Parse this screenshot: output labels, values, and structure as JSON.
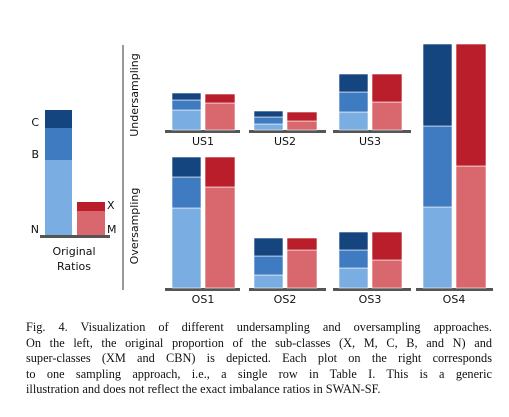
{
  "figure": {
    "colors": {
      "blue": [
        "#7aaee2",
        "#3f7bc0",
        "#15457f"
      ],
      "red": [
        "#d9686e",
        "#bb1e2b"
      ]
    },
    "original": {
      "blue": [
        {
          "name": "N",
          "value": 75
        },
        {
          "name": "B",
          "value": 32
        },
        {
          "name": "C",
          "value": 18
        }
      ],
      "red": [
        {
          "name": "M",
          "value": 24
        },
        {
          "name": "X",
          "value": 9
        }
      ],
      "label_lines": [
        "Original",
        "Ratios"
      ]
    },
    "row_labels": [
      "Undersampling",
      "Oversampling"
    ],
    "panels": [
      {
        "label": "US1",
        "blue": [
          20,
          10,
          7
        ],
        "red": [
          27,
          9
        ]
      },
      {
        "label": "US2",
        "blue": [
          6,
          7,
          6
        ],
        "red": [
          9,
          9
        ]
      },
      {
        "label": "US3",
        "blue": [
          18,
          20,
          18
        ],
        "red": [
          28,
          28
        ]
      },
      {
        "label": "OS1",
        "blue": [
          80,
          31,
          20
        ],
        "red": [
          101,
          30
        ]
      },
      {
        "label": "OS2",
        "blue": [
          13,
          19,
          18
        ],
        "red": [
          38,
          12
        ]
      },
      {
        "label": "OS3",
        "blue": [
          20,
          18,
          18
        ],
        "red": [
          28,
          28
        ]
      },
      {
        "label": "OS4",
        "blue": [
          81,
          81,
          82
        ],
        "red": [
          122,
          122
        ]
      }
    ]
  },
  "caption": {
    "lines": [
      "Fig. 4.  Visualization of different undersampling and oversampling approaches.",
      "On the left, the original proportion of the sub-classes (X, M, C, B, and N) and",
      "super-classes (XM and CBN) is depicted. Each plot on the right corresponds",
      "to one sampling approach, i.e., a single row in Table I. This is a generic",
      "illustration and does not reflect the exact imbalance ratios in SWAN-SF."
    ]
  }
}
